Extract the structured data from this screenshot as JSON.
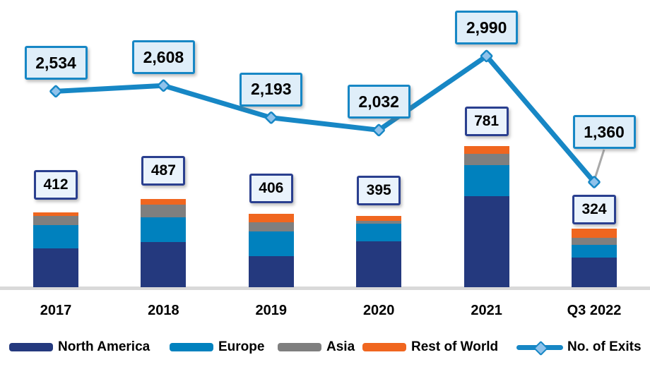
{
  "chart_data": {
    "type": "combo-stacked-bar-line",
    "title": "",
    "categories": [
      "2017",
      "2018",
      "2019",
      "2020",
      "2021",
      "Q3 2022"
    ],
    "stacked_bar_series": [
      {
        "name": "North America",
        "color": "#24397e",
        "values": [
          214,
          248,
          170,
          252,
          505,
          164
        ]
      },
      {
        "name": "Europe",
        "color": "#0081be",
        "values": [
          131,
          137,
          137,
          99,
          172,
          69
        ]
      },
      {
        "name": "Asia",
        "color": "#7f7f7f",
        "values": [
          48,
          72,
          52,
          18,
          62,
          39
        ]
      },
      {
        "name": "Rest of World",
        "color": "#f0661f",
        "values": [
          19,
          30,
          47,
          26,
          42,
          52
        ]
      }
    ],
    "bar_totals": {
      "values": [
        412,
        487,
        406,
        395,
        781,
        324
      ],
      "labels": [
        "412",
        "487",
        "406",
        "395",
        "781",
        "324"
      ]
    },
    "line_series": {
      "name": "No. of Exits",
      "color": "#1787c5",
      "marker_fill": "#8fc2eb",
      "values": [
        2534,
        2608,
        2193,
        2032,
        2990,
        1360
      ],
      "labels": [
        "2,534",
        "2,608",
        "2,193",
        "2,032",
        "2,990",
        "1,360"
      ]
    },
    "legend": {
      "position": "bottom",
      "items": [
        {
          "label": "North America",
          "type": "bar",
          "color": "#24397e"
        },
        {
          "label": "Europe",
          "type": "bar",
          "color": "#0081be"
        },
        {
          "label": "Asia",
          "type": "bar",
          "color": "#7f7f7f"
        },
        {
          "label": "Rest of World",
          "type": "bar",
          "color": "#f0661f"
        },
        {
          "label": "No. of Exits",
          "type": "line",
          "color": "#1787c5"
        }
      ]
    },
    "axes": {
      "gridlines": false,
      "y_axis_visible": false,
      "baseline_color": "#d9d9d9"
    },
    "styles": {
      "bar_label_box_fill": "#eaf3fc",
      "bar_label_box_border": "#2a3f8f",
      "line_label_box_fill": "#dfeef9",
      "line_label_box_border": "#1787c5",
      "leader_line_color": "#a9a9a9"
    }
  }
}
